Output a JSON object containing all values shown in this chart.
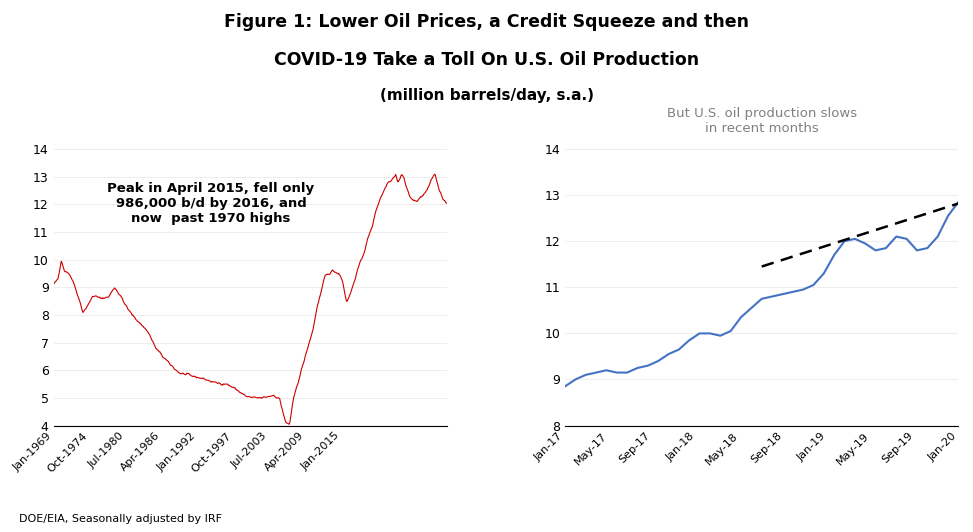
{
  "title_line1": "Figure 1: Lower Oil Prices, a Credit Squeeze and then",
  "title_line2": "COVID-19 Take a Toll On U.S. Oil Production",
  "title_line3": "(million barrels/day, s.a.)",
  "footnote": "DOE/EIA, Seasonally adjusted by IRF",
  "left_annotation": "Peak in April 2015, fell only\n986,000 b/d by 2016, and\nnow  past 1970 highs",
  "right_annotation": "But U.S. oil production slows\nin recent months",
  "left": {
    "yticks": [
      4,
      5,
      6,
      7,
      8,
      9,
      10,
      11,
      12,
      13,
      14
    ],
    "ylim": [
      4,
      14
    ],
    "color": "#cc0000",
    "xtick_labels": [
      "Jan-1969",
      "Oct-1974",
      "Jul-1980",
      "Apr-1986",
      "Jan-1992",
      "Oct-1997",
      "Jul-2003",
      "Apr-2009",
      "Jan-2015"
    ],
    "xtick_positions_frac": [
      0.0,
      0.0915,
      0.183,
      0.274,
      0.366,
      0.457,
      0.548,
      0.64,
      0.731
    ]
  },
  "right": {
    "yticks": [
      8,
      9,
      10,
      11,
      12,
      13,
      14
    ],
    "ylim": [
      8,
      14
    ],
    "color": "#4472c4",
    "dashed_color": "#000000",
    "xtick_labels": [
      "Jan-17",
      "May-17",
      "Sep-17",
      "Jan-18",
      "May-18",
      "Sep-18",
      "Jan-19",
      "May-19",
      "Sep-19",
      "Jan-20"
    ]
  }
}
